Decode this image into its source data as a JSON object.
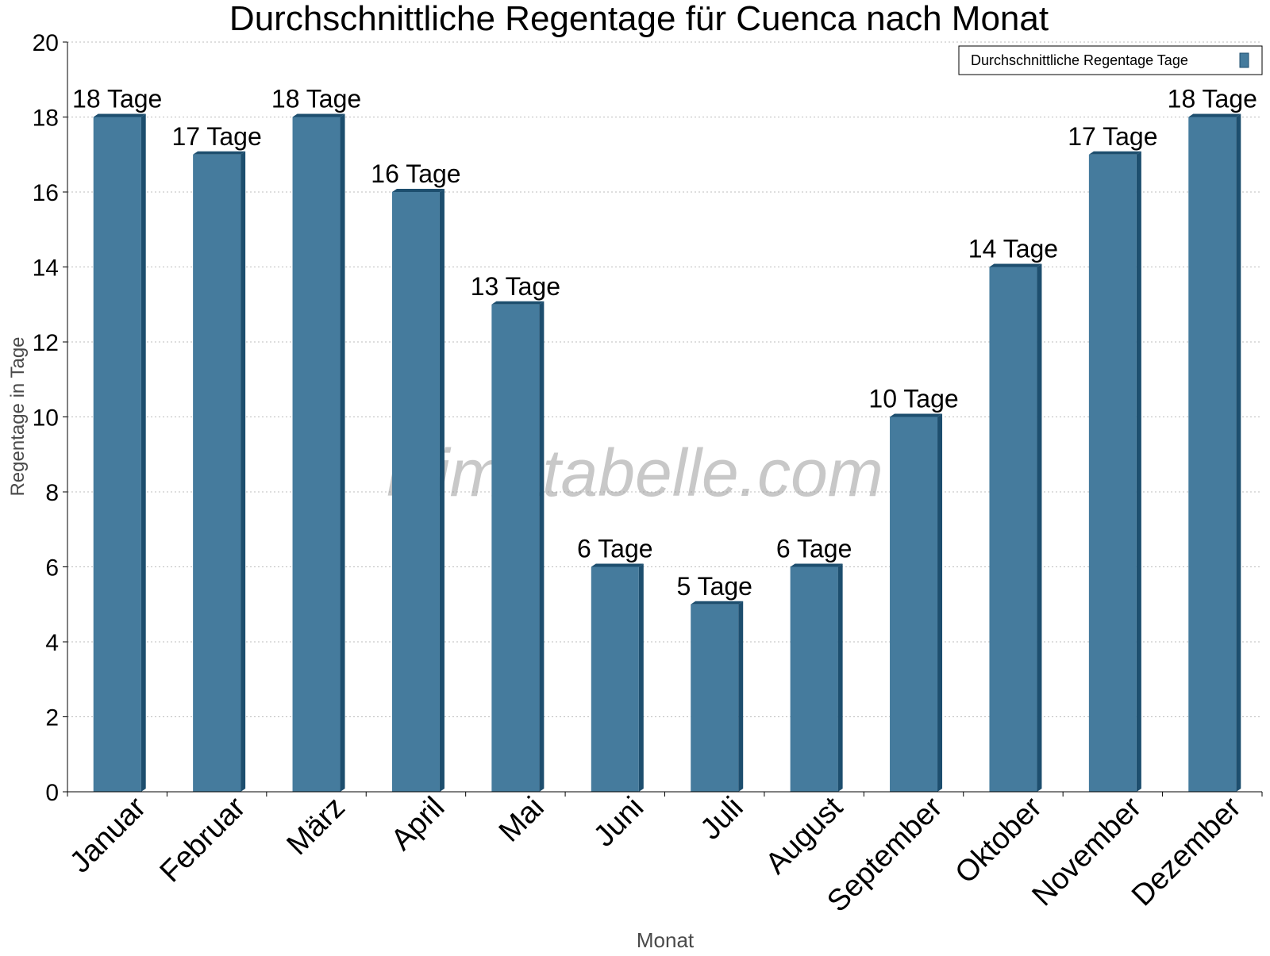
{
  "chart_data": {
    "type": "bar",
    "title": "Durchschnittliche Regentage für Cuenca nach Monat",
    "xlabel": "Monat",
    "ylabel": "Regentage in Tage",
    "categories": [
      "Januar",
      "Februar",
      "März",
      "April",
      "Mai",
      "Juni",
      "Juli",
      "August",
      "September",
      "Oktober",
      "November",
      "Dezember"
    ],
    "series": [
      {
        "name": "Durchschnittliche Regentage Tage",
        "values": [
          18,
          17,
          18,
          16,
          13,
          6,
          5,
          6,
          10,
          14,
          17,
          18
        ],
        "labels": [
          "18 Tage",
          "17 Tage",
          "18 Tage",
          "16 Tage",
          "13 Tage",
          "6 Tage",
          "5 Tage",
          "6 Tage",
          "10 Tage",
          "14 Tage",
          "17 Tage",
          "18 Tage"
        ],
        "color": "#457b9d",
        "shadow_color": "#1d4e6e"
      }
    ],
    "ylim": [
      0,
      20
    ],
    "yticks": [
      0,
      2,
      4,
      6,
      8,
      10,
      12,
      14,
      16,
      18,
      20
    ],
    "grid": true,
    "legend_position": "top-right",
    "watermark": "klimatabelle.com"
  }
}
